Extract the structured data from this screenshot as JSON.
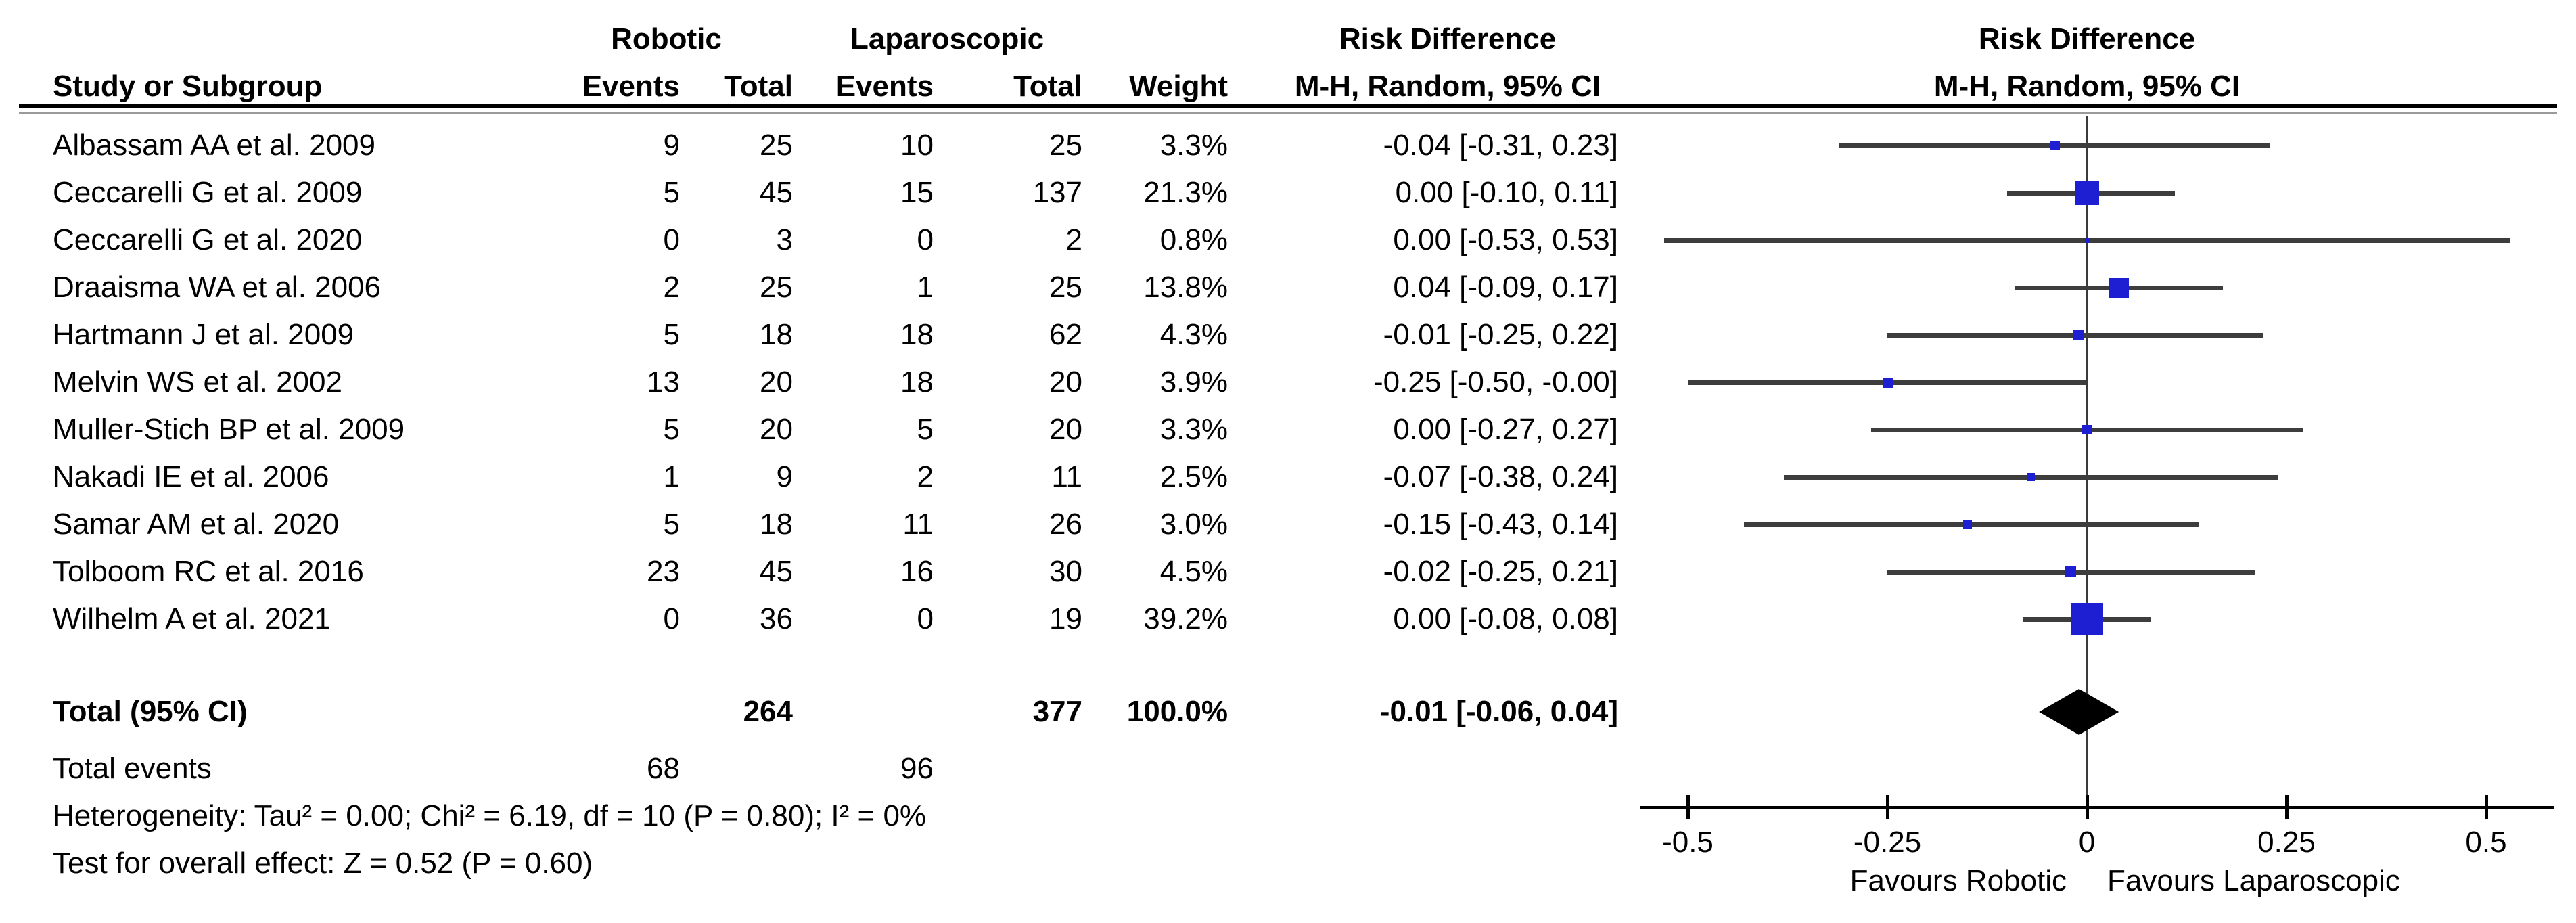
{
  "headers": {
    "group_robotic": "Robotic",
    "group_laparoscopic": "Laparoscopic",
    "study": "Study or Subgroup",
    "events_robotic": "Events",
    "total_robotic": "Total",
    "events_laparoscopic": "Events",
    "total_laparoscopic": "Total",
    "weight": "Weight",
    "ci_left_title": "Risk Difference",
    "ci_left_sub": "M-H, Random, 95% CI",
    "plot_title": "Risk Difference",
    "plot_sub": "M-H, Random, 95% CI"
  },
  "chart_data": {
    "type": "forest",
    "effect_measure": "Risk Difference",
    "method": "M-H, Random, 95% CI",
    "studies": [
      {
        "name": "Albassam AA et al. 2009",
        "robotic_events": 9,
        "robotic_total": 25,
        "laparoscopic_events": 10,
        "laparoscopic_total": 25,
        "weight": "3.3%",
        "rd": -0.04,
        "ci_low": -0.31,
        "ci_high": 0.23,
        "label": "-0.04 [-0.31, 0.23]"
      },
      {
        "name": "Ceccarelli G et al. 2009",
        "robotic_events": 5,
        "robotic_total": 45,
        "laparoscopic_events": 15,
        "laparoscopic_total": 137,
        "weight": "21.3%",
        "rd": 0.0,
        "ci_low": -0.1,
        "ci_high": 0.11,
        "label": "0.00 [-0.10, 0.11]"
      },
      {
        "name": "Ceccarelli G et al. 2020",
        "robotic_events": 0,
        "robotic_total": 3,
        "laparoscopic_events": 0,
        "laparoscopic_total": 2,
        "weight": "0.8%",
        "rd": 0.0,
        "ci_low": -0.53,
        "ci_high": 0.53,
        "label": "0.00 [-0.53, 0.53]"
      },
      {
        "name": "Draaisma WA et al. 2006",
        "robotic_events": 2,
        "robotic_total": 25,
        "laparoscopic_events": 1,
        "laparoscopic_total": 25,
        "weight": "13.8%",
        "rd": 0.04,
        "ci_low": -0.09,
        "ci_high": 0.17,
        "label": "0.04 [-0.09, 0.17]"
      },
      {
        "name": "Hartmann J et al. 2009",
        "robotic_events": 5,
        "robotic_total": 18,
        "laparoscopic_events": 18,
        "laparoscopic_total": 62,
        "weight": "4.3%",
        "rd": -0.01,
        "ci_low": -0.25,
        "ci_high": 0.22,
        "label": "-0.01 [-0.25, 0.22]"
      },
      {
        "name": "Melvin WS et al. 2002",
        "robotic_events": 13,
        "robotic_total": 20,
        "laparoscopic_events": 18,
        "laparoscopic_total": 20,
        "weight": "3.9%",
        "rd": -0.25,
        "ci_low": -0.5,
        "ci_high": 0.0,
        "label": "-0.25 [-0.50, -0.00]"
      },
      {
        "name": "Muller-Stich BP et al. 2009",
        "robotic_events": 5,
        "robotic_total": 20,
        "laparoscopic_events": 5,
        "laparoscopic_total": 20,
        "weight": "3.3%",
        "rd": 0.0,
        "ci_low": -0.27,
        "ci_high": 0.27,
        "label": "0.00 [-0.27, 0.27]"
      },
      {
        "name": "Nakadi IE et al. 2006",
        "robotic_events": 1,
        "robotic_total": 9,
        "laparoscopic_events": 2,
        "laparoscopic_total": 11,
        "weight": "2.5%",
        "rd": -0.07,
        "ci_low": -0.38,
        "ci_high": 0.24,
        "label": "-0.07 [-0.38, 0.24]"
      },
      {
        "name": "Samar AM et al. 2020",
        "robotic_events": 5,
        "robotic_total": 18,
        "laparoscopic_events": 11,
        "laparoscopic_total": 26,
        "weight": "3.0%",
        "rd": -0.15,
        "ci_low": -0.43,
        "ci_high": 0.14,
        "label": "-0.15 [-0.43, 0.14]"
      },
      {
        "name": "Tolboom RC et al. 2016",
        "robotic_events": 23,
        "robotic_total": 45,
        "laparoscopic_events": 16,
        "laparoscopic_total": 30,
        "weight": "4.5%",
        "rd": -0.02,
        "ci_low": -0.25,
        "ci_high": 0.21,
        "label": "-0.02 [-0.25, 0.21]"
      },
      {
        "name": "Wilhelm A et al. 2021",
        "robotic_events": 0,
        "robotic_total": 36,
        "laparoscopic_events": 0,
        "laparoscopic_total": 19,
        "weight": "39.2%",
        "rd": 0.0,
        "ci_low": -0.08,
        "ci_high": 0.08,
        "label": "0.00 [-0.08, 0.08]"
      }
    ],
    "total": {
      "label": "Total (95% CI)",
      "robotic_total": 264,
      "laparoscopic_total": 377,
      "weight": "100.0%",
      "rd": -0.01,
      "ci_low": -0.06,
      "ci_high": 0.04,
      "ci_label": "-0.01 [-0.06, 0.04]"
    },
    "total_events": {
      "label": "Total events",
      "robotic": 68,
      "laparoscopic": 96
    },
    "heterogeneity": "Heterogeneity: Tau² = 0.00; Chi² = 6.19, df = 10 (P = 0.80); I² = 0%",
    "overall_effect": "Test for overall effect: Z = 0.52 (P = 0.60)",
    "axis": {
      "ticks": [
        -0.5,
        -0.25,
        0,
        0.25,
        0.5
      ],
      "tick_labels": [
        "-0.5",
        "-0.25",
        "0",
        "0.25",
        "0.5"
      ],
      "xlim": [
        -0.56,
        0.58
      ],
      "favours_left": "Favours Robotic",
      "favours_right": "Favours Laparoscopic"
    },
    "colors": {
      "marker": "#1e1ed2",
      "diamond": "#000000",
      "ci_line": "#3d3d3d",
      "axis": "#000000",
      "zero_line": "#3a3a3a"
    }
  }
}
